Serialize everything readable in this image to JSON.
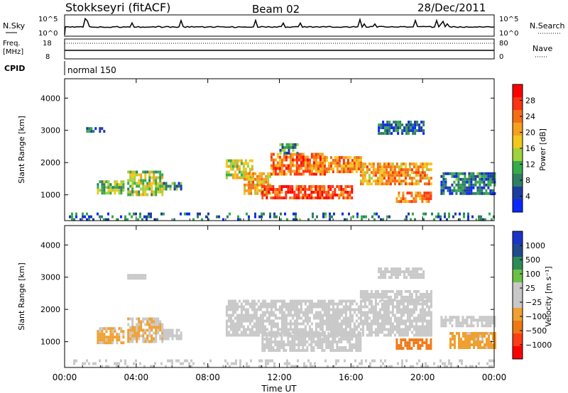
{
  "header": {
    "station": "Stokkseyri (fitACF)",
    "beam": "Beam 02",
    "date": "28/Dec/2011"
  },
  "top_panels": {
    "nsky_label": "N.Sky",
    "nsky_ticks": [
      "10^5",
      "10^0"
    ],
    "nsearch_label": "N.Search",
    "nsearch_ticks": [
      "10^5",
      "10^0"
    ],
    "freq_label_line1": "Freq.",
    "freq_label_line2": "[MHz]",
    "freq_ticks": [
      "18",
      "8"
    ],
    "nave_label": "Nave",
    "nave_ticks": [
      "80",
      "0"
    ],
    "cpid_label": "CPID",
    "cpid_value": "normal 150"
  },
  "colors": {
    "power": [
      "#0a28ff",
      "#1e3ca0",
      "#2f7f64",
      "#37aa4b",
      "#9fd23c",
      "#f0c81e",
      "#f5a01e",
      "#f56e14",
      "#ff3214",
      "#ff0000"
    ],
    "velocity": [
      "#1c33c8",
      "#1f4b8c",
      "#2e8b57",
      "#6cc046",
      "#c8c8c8",
      "#c8c8c8",
      "#f0a030",
      "#f07814",
      "#ff3c14",
      "#ff0000"
    ]
  },
  "chart_data": [
    {
      "type": "heatmap",
      "panel": "power",
      "ylabel": "Slant Range [km]",
      "yticks": [
        "1000",
        "2000",
        "3000",
        "4000"
      ],
      "ylim": [
        200,
        4600
      ],
      "xlim": [
        0,
        24
      ],
      "colorbar_label": "Power [dB]",
      "colorbar_ticks": [
        "4",
        "8",
        "12",
        "16",
        "20",
        "24",
        "28"
      ],
      "colorbar_range": [
        0,
        32
      ],
      "regions": [
        {
          "t0": 1.2,
          "t1": 2.2,
          "r0": 2950,
          "r1": 3100,
          "v": 6
        },
        {
          "t0": 1.8,
          "t1": 3.3,
          "r0": 1050,
          "r1": 1450,
          "v": 13
        },
        {
          "t0": 3.5,
          "t1": 5.5,
          "r0": 1000,
          "r1": 1750,
          "v": 15
        },
        {
          "t0": 5.5,
          "t1": 6.5,
          "r0": 1150,
          "r1": 1400,
          "v": 9
        },
        {
          "t0": 9.0,
          "t1": 10.5,
          "r0": 1500,
          "r1": 2100,
          "v": 16
        },
        {
          "t0": 10.0,
          "t1": 11.5,
          "r0": 1000,
          "r1": 1700,
          "v": 20
        },
        {
          "t0": 11.0,
          "t1": 16.0,
          "r0": 900,
          "r1": 1300,
          "v": 27
        },
        {
          "t0": 11.5,
          "t1": 14.5,
          "r0": 1600,
          "r1": 2300,
          "v": 24
        },
        {
          "t0": 14.0,
          "t1": 16.5,
          "r0": 1700,
          "r1": 2200,
          "v": 22
        },
        {
          "t0": 12.0,
          "t1": 13.0,
          "r0": 2300,
          "r1": 2600,
          "v": 9
        },
        {
          "t0": 16.5,
          "t1": 20.5,
          "r0": 1300,
          "r1": 2000,
          "v": 21
        },
        {
          "t0": 17.5,
          "t1": 20.0,
          "r0": 2900,
          "r1": 3300,
          "v": 5
        },
        {
          "t0": 18.5,
          "t1": 20.5,
          "r0": 800,
          "r1": 1100,
          "v": 23
        },
        {
          "t0": 21.0,
          "t1": 24.0,
          "r0": 1000,
          "r1": 1700,
          "v": 7
        },
        {
          "t0": 0.0,
          "t1": 24.0,
          "r0": 200,
          "r1": 450,
          "v": 7
        }
      ]
    },
    {
      "type": "heatmap",
      "panel": "velocity",
      "ylabel": "Slant Range [km]",
      "yticks": [
        "1000",
        "2000",
        "3000",
        "4000"
      ],
      "ylim": [
        200,
        4600
      ],
      "xlim": [
        0,
        24
      ],
      "colorbar_label": "Velocity [m s⁻¹]",
      "colorbar_ticks": [
        "1000",
        "500",
        "100",
        "25",
        "−25",
        "−100",
        "−500",
        "−1000"
      ],
      "colorbar_range": [
        -1200,
        1200
      ],
      "regions": [
        {
          "t0": 1.8,
          "t1": 3.3,
          "r0": 1000,
          "r1": 1450,
          "v": -300
        },
        {
          "t0": 3.5,
          "t1": 5.5,
          "r0": 1000,
          "r1": 1750,
          "v": -250
        },
        {
          "t0": 5.5,
          "t1": 6.5,
          "r0": 1100,
          "r1": 1400,
          "v": 60
        },
        {
          "t0": 3.5,
          "t1": 4.5,
          "r0": 2950,
          "r1": 3100,
          "v": 0
        },
        {
          "t0": 9.0,
          "t1": 20.5,
          "r0": 1200,
          "r1": 2300,
          "v": 0
        },
        {
          "t0": 11.0,
          "t1": 16.5,
          "r0": 700,
          "r1": 1300,
          "v": 0
        },
        {
          "t0": 16.5,
          "t1": 20.5,
          "r0": 2300,
          "r1": 2600,
          "v": 0
        },
        {
          "t0": 17.5,
          "t1": 20.0,
          "r0": 3000,
          "r1": 3300,
          "v": -50
        },
        {
          "t0": 18.5,
          "t1": 20.5,
          "r0": 800,
          "r1": 1100,
          "v": -600
        },
        {
          "t0": 21.0,
          "t1": 24.0,
          "r0": 1500,
          "r1": 1800,
          "v": 0
        },
        {
          "t0": 21.5,
          "t1": 24.0,
          "r0": 800,
          "r1": 1300,
          "v": -350
        },
        {
          "t0": 0.0,
          "t1": 24.0,
          "r0": 200,
          "r1": 450,
          "v": 0
        }
      ]
    }
  ],
  "x_axis": {
    "label": "Time UT",
    "ticks": [
      "00:00",
      "04:00",
      "08:00",
      "12:00",
      "16:00",
      "20:00",
      "00:00"
    ]
  }
}
